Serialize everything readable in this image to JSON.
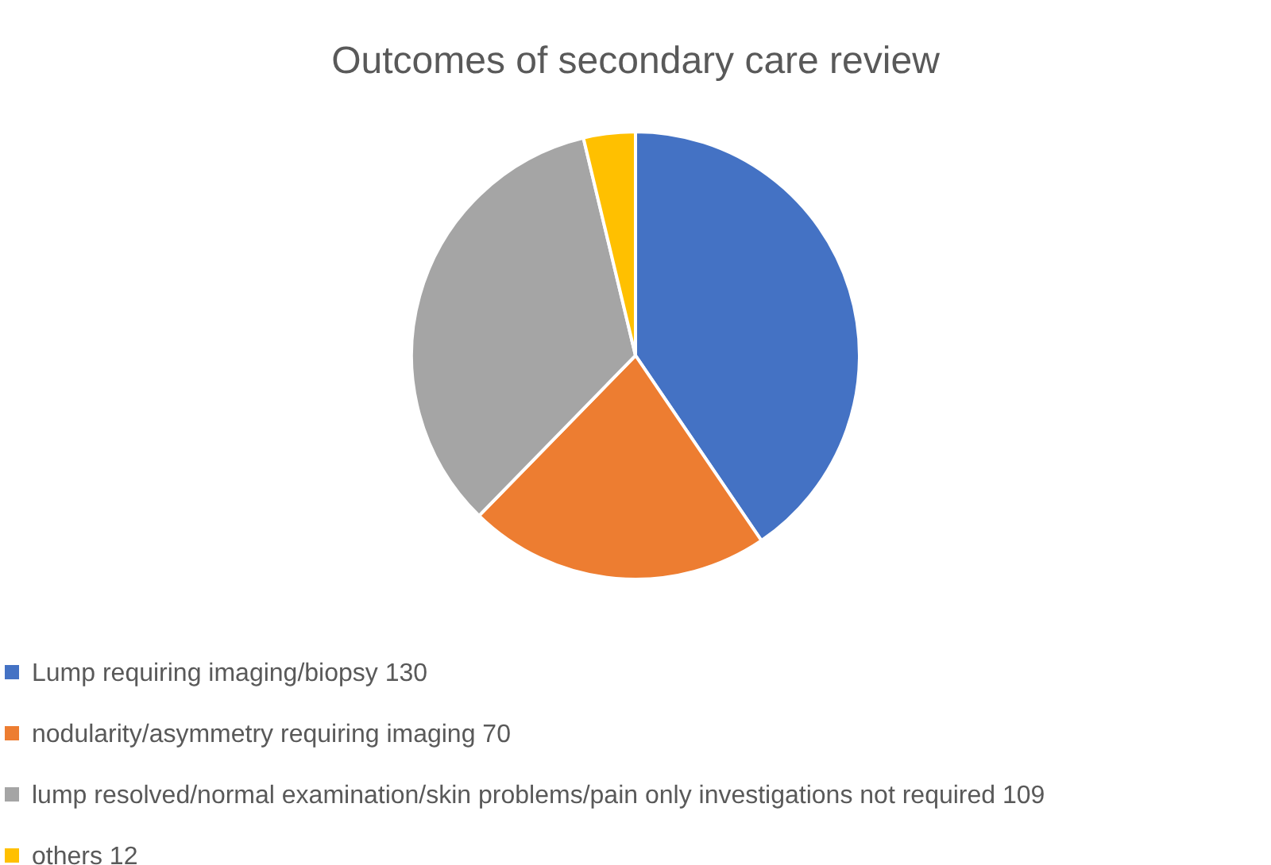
{
  "chart_data": {
    "type": "pie",
    "title": "Outcomes of secondary care review",
    "categories": [
      "Lump requiring imaging/biopsy 130",
      "nodularity/asymmetry requiring imaging 70",
      "lump resolved/normal examination/skin problems/pain only investigations not required 109",
      "others 12"
    ],
    "values": [
      130,
      70,
      109,
      12
    ],
    "colors": [
      "#4472c4",
      "#ed7d31",
      "#a5a5a5",
      "#ffc000"
    ],
    "legend": "bottom"
  }
}
